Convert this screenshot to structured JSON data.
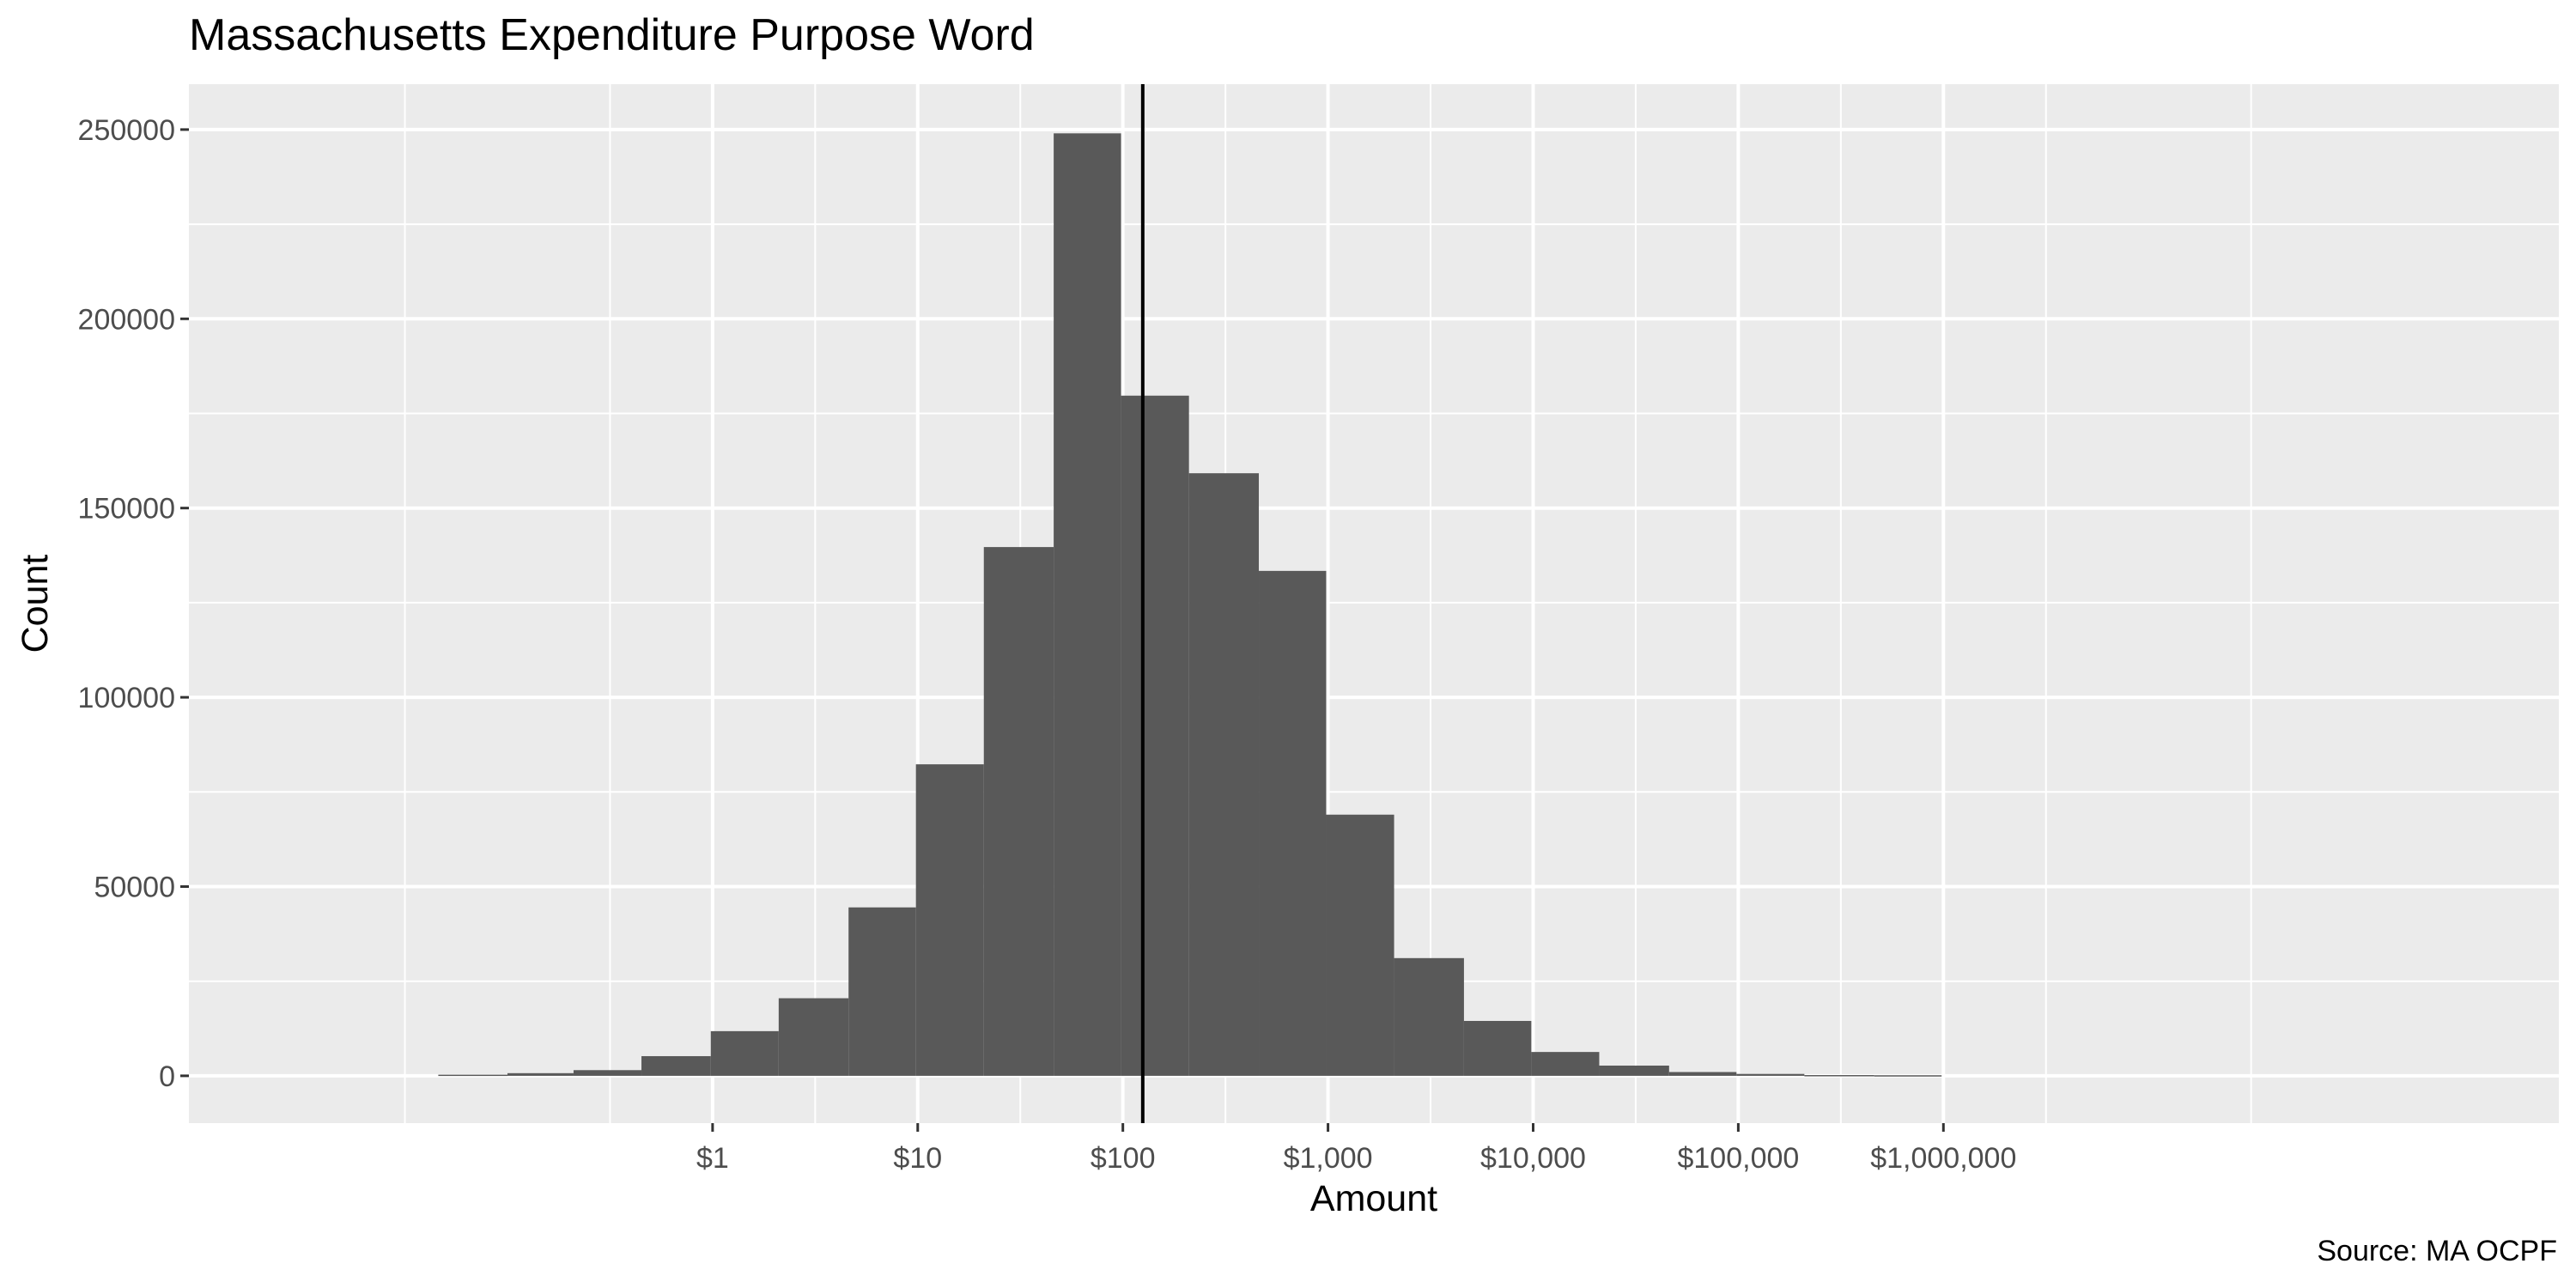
{
  "chart_data": {
    "type": "bar",
    "title": "Massachusetts Expenditure Purpose Word",
    "subtitle": "",
    "xlabel": "Amount",
    "ylabel": "Count",
    "caption": "Source: MA OCPF",
    "x_scale": "log10",
    "xlim": [
      0.0028,
      1000000000
    ],
    "ylim": [
      -12500,
      262000
    ],
    "grid": true,
    "background_color": "#ebebeb",
    "bar_color": "#595959",
    "reference_line": {
      "value": 125,
      "color": "#000000"
    },
    "x_ticks": [
      {
        "value": 1,
        "label": "$1"
      },
      {
        "value": 10,
        "label": "$10"
      },
      {
        "value": 100,
        "label": "$100"
      },
      {
        "value": 1000,
        "label": "$1,000"
      },
      {
        "value": 10000,
        "label": "$10,000"
      },
      {
        "value": 100000,
        "label": "$100,000"
      },
      {
        "value": 1000000,
        "label": "$1,000,000"
      }
    ],
    "y_ticks": [
      {
        "value": 0,
        "label": "0"
      },
      {
        "value": 50000,
        "label": "50000"
      },
      {
        "value": 100000,
        "label": "100000"
      },
      {
        "value": 150000,
        "label": "150000"
      },
      {
        "value": 200000,
        "label": "200000"
      },
      {
        "value": 250000,
        "label": "250000"
      }
    ],
    "bins": [
      {
        "x0": 0.046,
        "x1": 0.1,
        "count": 300
      },
      {
        "x0": 0.1,
        "x1": 0.21,
        "count": 700
      },
      {
        "x0": 0.21,
        "x1": 0.45,
        "count": 1500
      },
      {
        "x0": 0.45,
        "x1": 0.98,
        "count": 5200
      },
      {
        "x0": 0.98,
        "x1": 2.1,
        "count": 11800
      },
      {
        "x0": 2.1,
        "x1": 4.6,
        "count": 20500
      },
      {
        "x0": 4.6,
        "x1": 9.8,
        "count": 44500
      },
      {
        "x0": 9.8,
        "x1": 21,
        "count": 82300
      },
      {
        "x0": 21,
        "x1": 46,
        "count": 139700
      },
      {
        "x0": 46,
        "x1": 98,
        "count": 249000
      },
      {
        "x0": 98,
        "x1": 210,
        "count": 179700
      },
      {
        "x0": 210,
        "x1": 460,
        "count": 159200
      },
      {
        "x0": 460,
        "x1": 980,
        "count": 133400
      },
      {
        "x0": 980,
        "x1": 2100,
        "count": 69000
      },
      {
        "x0": 2100,
        "x1": 4600,
        "count": 31100
      },
      {
        "x0": 4600,
        "x1": 9800,
        "count": 14500
      },
      {
        "x0": 9800,
        "x1": 21000,
        "count": 6300
      },
      {
        "x0": 21000,
        "x1": 46000,
        "count": 2700
      },
      {
        "x0": 46000,
        "x1": 98000,
        "count": 1000
      },
      {
        "x0": 98000,
        "x1": 210000,
        "count": 500
      },
      {
        "x0": 210000,
        "x1": 460000,
        "count": 200
      },
      {
        "x0": 460000,
        "x1": 980000,
        "count": 150
      }
    ]
  }
}
